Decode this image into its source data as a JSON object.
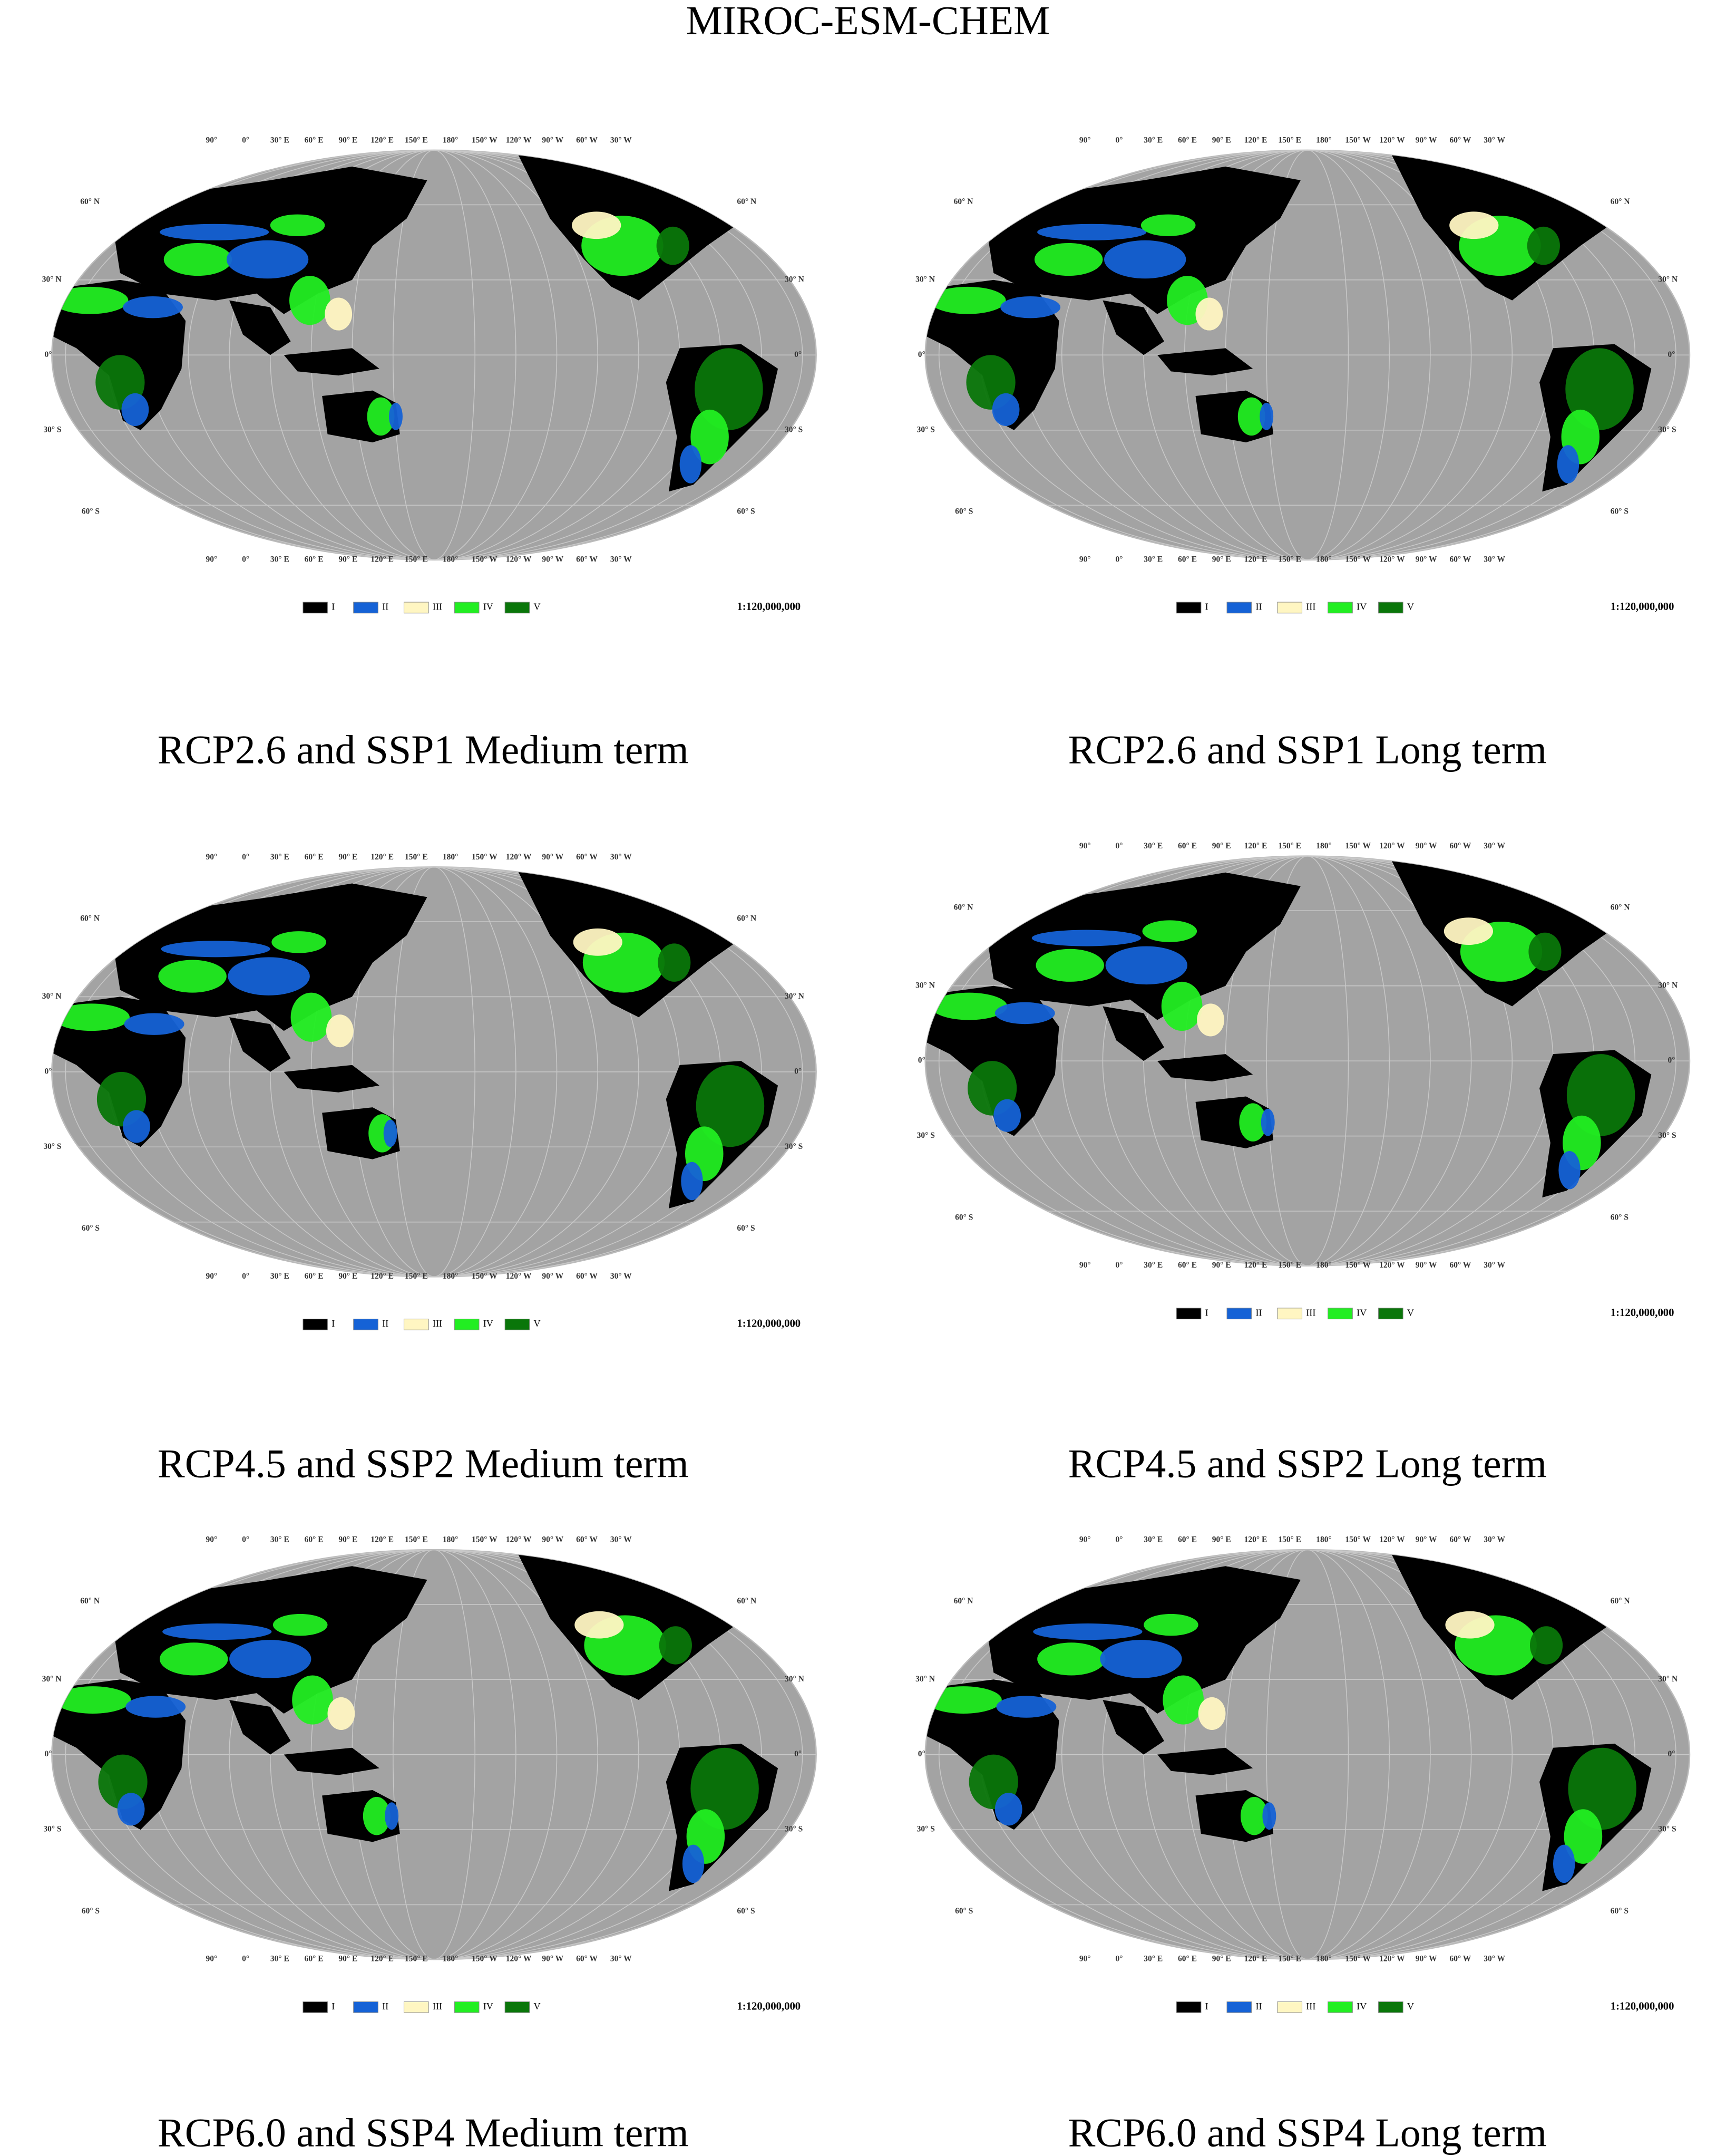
{
  "title": "MIROC-ESM-CHEM",
  "map": {
    "longitude_labels": [
      "90°",
      "0°",
      "30° E",
      "60° E",
      "90° E",
      "120° E",
      "150° E",
      "180°",
      "150° W",
      "120° W",
      "90° W",
      "60° W",
      "30° W"
    ],
    "latitude_labels": [
      "60° N",
      "30° N",
      "0°",
      "30° S",
      "60° S"
    ]
  },
  "legend": [
    {
      "label": "I",
      "color": "#000000"
    },
    {
      "label": "II",
      "color": "#1562d6"
    },
    {
      "label": "III",
      "color": "#fff6c2"
    },
    {
      "label": "IV",
      "color": "#22ee22"
    },
    {
      "label": "V",
      "color": "#0a760a"
    }
  ],
  "scale": "1:120,000,000",
  "panels": [
    {
      "caption": "RCP2.6 and SSP1 Medium term"
    },
    {
      "caption": "RCP2.6 and SSP1 Long term"
    },
    {
      "caption": "RCP4.5 and SSP2 Medium term"
    },
    {
      "caption": "RCP4.5 and SSP2 Long term"
    },
    {
      "caption": "RCP6.0 and SSP4 Medium term"
    },
    {
      "caption": "RCP6.0 and SSP4 Long term"
    }
  ]
}
